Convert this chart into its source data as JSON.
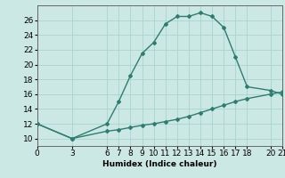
{
  "line1_x": [
    0,
    3,
    6,
    7,
    8,
    9,
    10,
    11,
    12,
    13,
    14,
    15,
    16,
    17,
    18,
    20,
    21
  ],
  "line1_y": [
    12,
    10,
    12,
    15,
    18.5,
    21.5,
    23,
    25.5,
    26.5,
    26.5,
    27,
    26.5,
    25,
    21,
    17,
    16.5,
    16
  ],
  "line2_x": [
    0,
    3,
    6,
    7,
    8,
    9,
    10,
    11,
    12,
    13,
    14,
    15,
    16,
    17,
    18,
    20,
    21
  ],
  "line2_y": [
    12,
    10,
    11,
    11.2,
    11.5,
    11.8,
    12,
    12.3,
    12.6,
    13.0,
    13.5,
    14.0,
    14.5,
    15.0,
    15.4,
    16.0,
    16.3
  ],
  "line_color": "#2e7d6e",
  "bg_color": "#cce8e4",
  "grid_color": "#a8d4cf",
  "xlabel": "Humidex (Indice chaleur)",
  "xlim": [
    0,
    21
  ],
  "ylim": [
    9,
    28
  ],
  "xticks": [
    0,
    3,
    6,
    7,
    8,
    9,
    10,
    11,
    12,
    13,
    14,
    15,
    16,
    17,
    18,
    20,
    21
  ],
  "yticks": [
    10,
    12,
    14,
    16,
    18,
    20,
    22,
    24,
    26
  ],
  "marker": "D",
  "marker_size": 2,
  "line_width": 1.0,
  "font_size": 6.5
}
